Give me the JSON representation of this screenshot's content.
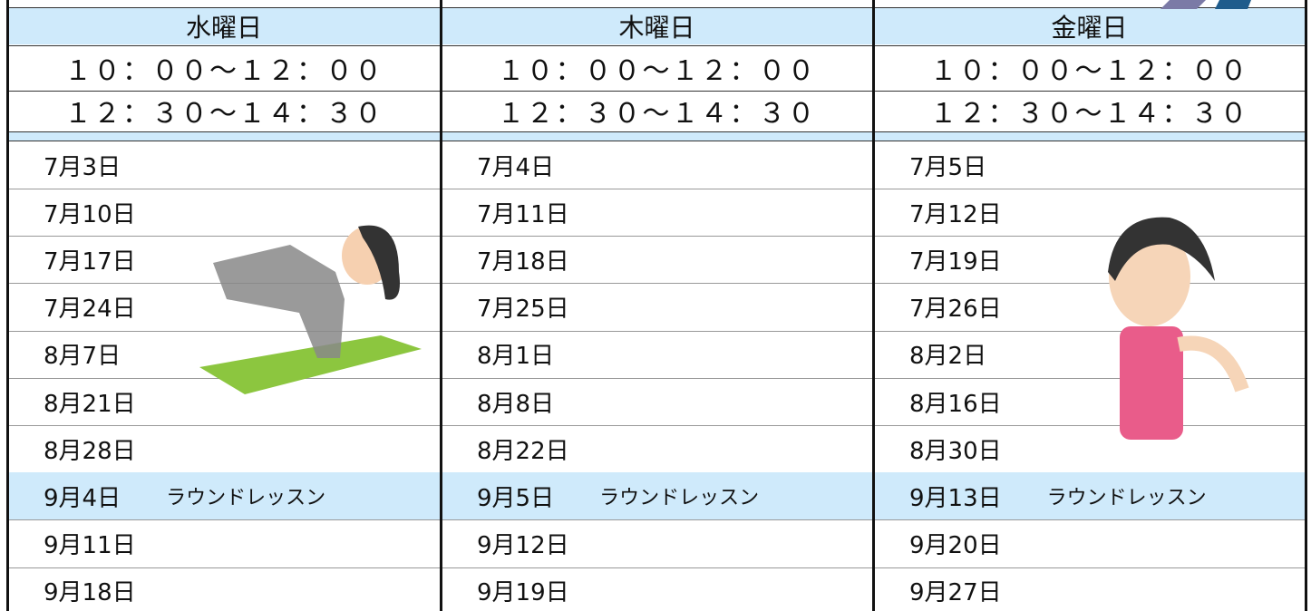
{
  "table": {
    "columns": [
      {
        "header": "水曜日",
        "times": [
          "１０：００～１２：００",
          "１２：３０～１４：３０"
        ],
        "rows": [
          {
            "date": "7月3日"
          },
          {
            "date": "7月10日"
          },
          {
            "date": "7月17日"
          },
          {
            "date": "7月24日"
          },
          {
            "date": "8月7日"
          },
          {
            "date": "8月21日"
          },
          {
            "date": "8月28日"
          },
          {
            "date": "9月4日",
            "note": "ラウンドレッスン"
          },
          {
            "date": "9月11日"
          },
          {
            "date": "9月18日"
          }
        ]
      },
      {
        "header": "木曜日",
        "times": [
          "１０：００～１２：００",
          "１２：３０～１４：３０"
        ],
        "rows": [
          {
            "date": "7月4日"
          },
          {
            "date": "7月11日"
          },
          {
            "date": "7月18日"
          },
          {
            "date": "7月25日"
          },
          {
            "date": "8月1日"
          },
          {
            "date": "8月8日"
          },
          {
            "date": "8月22日"
          },
          {
            "date": "9月5日",
            "note": "ラウンドレッスン"
          },
          {
            "date": "9月12日"
          },
          {
            "date": "9月19日"
          }
        ]
      },
      {
        "header": "金曜日",
        "times": [
          "１０：００～１２：００",
          "１２：３０～１４：３０"
        ],
        "rows": [
          {
            "date": "7月5日"
          },
          {
            "date": "7月12日"
          },
          {
            "date": "7月19日"
          },
          {
            "date": "7月26日"
          },
          {
            "date": "8月2日"
          },
          {
            "date": "8月16日"
          },
          {
            "date": "8月30日"
          },
          {
            "date": "9月13日",
            "note": "ラウンドレッスン"
          },
          {
            "date": "9月20日"
          },
          {
            "date": "9月27日"
          }
        ]
      }
    ]
  }
}
